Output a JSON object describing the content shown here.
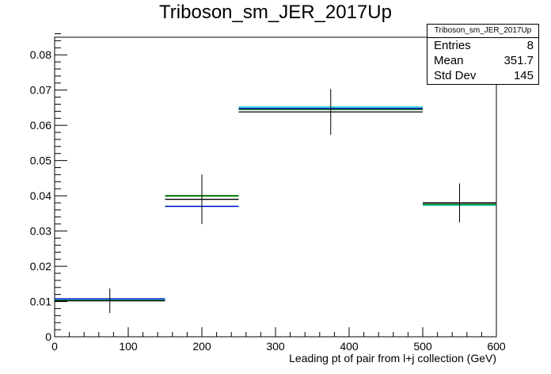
{
  "chart_data": {
    "type": "histogram",
    "title": "Triboson_sm_JER_2017Up",
    "xlabel": "Leading pt of pair from l+j collection (GeV)",
    "ylabel": "",
    "xlim": [
      0,
      600
    ],
    "ylim": [
      0,
      0.085
    ],
    "x_ticks": [
      0,
      100,
      200,
      300,
      400,
      500,
      600
    ],
    "y_ticks": [
      0,
      0.01,
      0.02,
      0.03,
      0.04,
      0.05,
      0.06,
      0.07,
      0.08
    ],
    "y_tick_labels": [
      "0",
      "0.01",
      "0.02",
      "0.03",
      "0.04",
      "0.05",
      "0.06",
      "0.07",
      "0.08"
    ],
    "grid": false,
    "bins": [
      {
        "low": 0,
        "high": 150,
        "center": 75
      },
      {
        "low": 150,
        "high": 250,
        "center": 200
      },
      {
        "low": 250,
        "high": 500,
        "center": 375
      },
      {
        "low": 500,
        "high": 600,
        "center": 550
      }
    ],
    "series": [
      {
        "color": "#00cccc",
        "values": [
          0.0105,
          0.037,
          0.0652,
          0.0373
        ],
        "errors": null
      },
      {
        "color": "#0000cc",
        "values": [
          0.0108,
          0.037,
          0.0648,
          0.038
        ],
        "errors": null
      },
      {
        "color": "#007700",
        "values": [
          0.0103,
          0.04,
          0.0645,
          0.0376
        ],
        "errors": null
      },
      {
        "color": "#000000",
        "values": [
          0.0102,
          0.039,
          0.0638,
          0.038
        ],
        "errors": [
          0.0035,
          0.007,
          0.0065,
          0.0055
        ]
      }
    ],
    "stats": {
      "name": "Triboson_sm_JER_2017Up",
      "entries_label": "Entries",
      "entries": "8",
      "mean_label": "Mean",
      "mean": "351.7",
      "std_label": "Std Dev",
      "std": "145"
    }
  }
}
